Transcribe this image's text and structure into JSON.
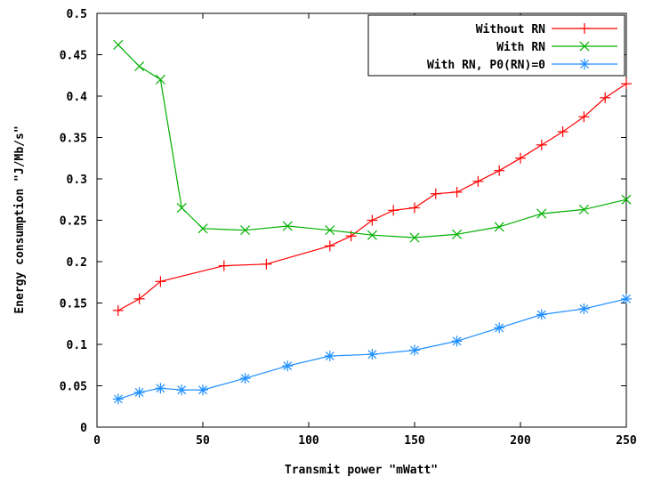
{
  "chart_data": {
    "type": "line",
    "title": "",
    "xlabel": "Transmit power \"mWatt\"",
    "ylabel": "Energy consumption \"J/Mb/s\"",
    "xlim": [
      0,
      250
    ],
    "ylim": [
      0,
      0.5
    ],
    "xticks": [
      0,
      50,
      100,
      150,
      200,
      250
    ],
    "yticks": [
      0,
      0.05,
      0.1,
      0.15,
      0.2,
      0.25,
      0.3,
      0.35,
      0.4,
      0.45,
      0.5
    ],
    "xtick_labels": [
      "0",
      "50",
      "100",
      "150",
      "200",
      "250"
    ],
    "ytick_labels": [
      "0",
      "0.05",
      "0.1",
      "0.15",
      "0.2",
      "0.25",
      "0.3",
      "0.35",
      "0.4",
      "0.45",
      "0.5"
    ],
    "grid": false,
    "legend_position": "top-right",
    "series": [
      {
        "name": "Without RN",
        "color": "#ff0000",
        "marker": "plus",
        "x": [
          10,
          20,
          30,
          60,
          80,
          110,
          120,
          130,
          140,
          150,
          160,
          170,
          180,
          190,
          200,
          210,
          220,
          230,
          240,
          250
        ],
        "y": [
          0.141,
          0.155,
          0.176,
          0.195,
          0.197,
          0.219,
          0.231,
          0.25,
          0.262,
          0.265,
          0.282,
          0.284,
          0.297,
          0.31,
          0.325,
          0.341,
          0.357,
          0.375,
          0.398,
          0.415
        ]
      },
      {
        "name": "With RN",
        "color": "#00b000",
        "marker": "cross",
        "x": [
          10,
          20,
          30,
          40,
          50,
          70,
          90,
          110,
          130,
          150,
          170,
          190,
          210,
          230,
          250
        ],
        "y": [
          0.462,
          0.436,
          0.42,
          0.265,
          0.24,
          0.238,
          0.243,
          0.238,
          0.232,
          0.229,
          0.233,
          0.242,
          0.258,
          0.263,
          0.275
        ]
      },
      {
        "name": "With RN, P0(RN)=0",
        "color": "#1e8fff",
        "marker": "star",
        "x": [
          10,
          20,
          30,
          40,
          50,
          70,
          90,
          110,
          130,
          150,
          170,
          190,
          210,
          230,
          250
        ],
        "y": [
          0.034,
          0.042,
          0.047,
          0.045,
          0.045,
          0.059,
          0.074,
          0.086,
          0.088,
          0.093,
          0.104,
          0.12,
          0.136,
          0.143,
          0.155
        ]
      }
    ]
  }
}
